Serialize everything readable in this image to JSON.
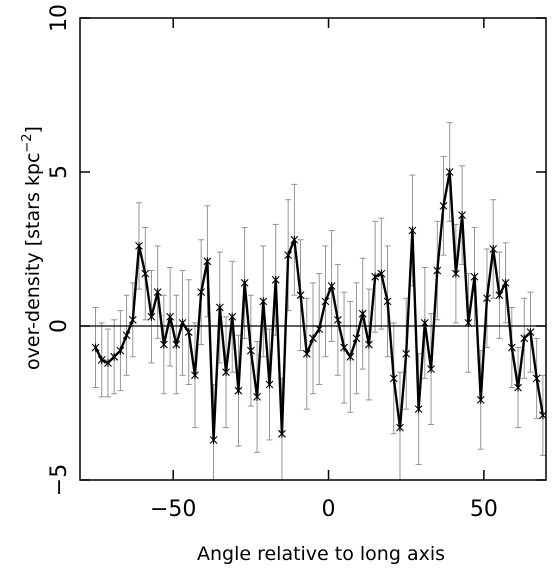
{
  "chart_data": {
    "type": "line",
    "title": "",
    "xlabel": "Angle relative to long axis",
    "ylabel_main": "over-density [stars kpc",
    "ylabel_sup": "−2",
    "ylabel_end": "]",
    "xlim": [
      -80,
      70
    ],
    "ylim": [
      -5,
      10
    ],
    "xticks": [
      -50,
      0,
      50
    ],
    "xtick_labels": [
      "−50",
      "0",
      "50"
    ],
    "yticks": [
      -5,
      0,
      5,
      10
    ],
    "ytick_labels": [
      "−5",
      "0",
      "5",
      "10"
    ],
    "reference_line_y": 0,
    "grid": false,
    "series": [
      {
        "x": [
          -75,
          -73,
          -71,
          -69,
          -67,
          -65,
          -63,
          -61,
          -59,
          -57,
          -55,
          -53,
          -51,
          -49,
          -47,
          -45,
          -43,
          -41,
          -39,
          -37,
          -35,
          -33,
          -31,
          -29,
          -27,
          -25,
          -23,
          -21,
          -19,
          -17,
          -15,
          -13,
          -11,
          -9,
          -7,
          -5,
          -3,
          -1,
          1,
          3,
          5,
          7,
          9,
          11,
          13,
          15,
          17,
          19,
          21,
          23,
          25,
          27,
          29,
          31,
          33,
          35,
          37,
          39,
          41,
          43,
          45,
          47,
          49,
          51,
          53,
          55,
          57,
          59,
          61,
          63,
          65,
          67,
          69
        ],
        "y": [
          -0.7,
          -1.1,
          -1.2,
          -1.0,
          -0.8,
          -0.3,
          0.2,
          2.6,
          1.7,
          0.3,
          1.1,
          -0.6,
          0.3,
          -0.6,
          0.1,
          -0.2,
          -1.6,
          1.1,
          2.1,
          -3.7,
          0.6,
          -1.5,
          0.3,
          -2.1,
          1.4,
          -0.8,
          -2.3,
          0.8,
          -1.9,
          1.5,
          -3.5,
          2.3,
          2.8,
          1.0,
          -0.9,
          -0.4,
          -0.1,
          0.8,
          1.3,
          0.2,
          -0.7,
          -1.0,
          -0.4,
          0.4,
          -0.6,
          1.6,
          1.7,
          0.8,
          -1.7,
          -3.3,
          -0.9,
          3.1,
          -2.7,
          0.1,
          -1.4,
          1.8,
          3.9,
          5.0,
          1.7,
          3.6,
          0.1,
          1.6,
          -2.4,
          0.9,
          2.5,
          1.0,
          1.4,
          -0.7,
          -2.0,
          -0.4,
          -0.2,
          -1.7,
          -2.9
        ],
        "err": [
          1.3,
          1.2,
          1.1,
          1.2,
          1.3,
          1.3,
          1.2,
          1.4,
          1.5,
          1.5,
          1.5,
          1.6,
          1.6,
          1.6,
          1.7,
          1.7,
          1.7,
          1.7,
          1.8,
          1.8,
          1.8,
          1.8,
          1.8,
          1.8,
          1.8,
          1.8,
          1.8,
          1.8,
          1.8,
          1.8,
          1.8,
          1.8,
          1.8,
          1.8,
          1.8,
          1.8,
          1.8,
          1.8,
          1.8,
          1.8,
          1.8,
          1.8,
          1.8,
          1.8,
          1.8,
          1.8,
          1.8,
          1.8,
          1.8,
          1.8,
          1.8,
          1.8,
          1.8,
          1.8,
          1.8,
          1.6,
          1.6,
          1.6,
          1.6,
          1.6,
          1.6,
          1.6,
          1.6,
          1.6,
          1.6,
          1.4,
          1.3,
          1.3,
          1.3,
          1.3,
          1.3,
          1.3,
          1.3
        ]
      }
    ]
  }
}
